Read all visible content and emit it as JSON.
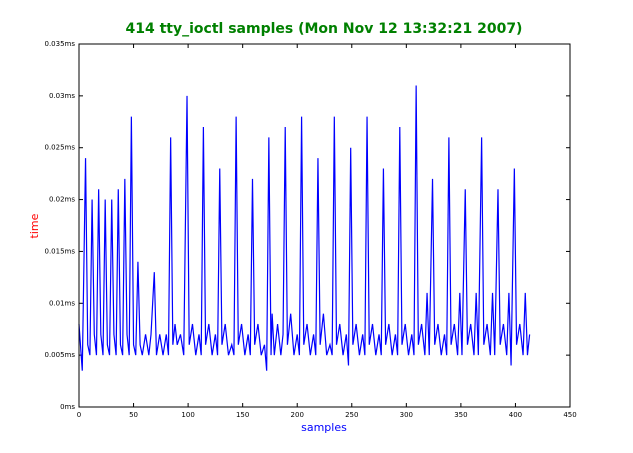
{
  "chart_data": {
    "type": "line",
    "title": "414 tty_ioctl samples (Mon Nov 12 13:32:21 2007)",
    "xlabel": "samples",
    "ylabel": "time",
    "color": "#0000ff",
    "xlim": [
      0,
      450
    ],
    "xticks": [
      0,
      50,
      100,
      150,
      200,
      250,
      300,
      350,
      400,
      450
    ],
    "ylim": [
      0,
      0.035
    ],
    "yticks": [
      {
        "value": 0,
        "label": "0ms"
      },
      {
        "value": 0.005,
        "label": "0.005ms"
      },
      {
        "value": 0.01,
        "label": "0.01ms"
      },
      {
        "value": 0.015,
        "label": "0.015ms"
      },
      {
        "value": 0.02,
        "label": "0.02ms"
      },
      {
        "value": 0.025,
        "label": "0.025ms"
      },
      {
        "value": 0.03,
        "label": "0.03ms"
      },
      {
        "value": 0.035,
        "label": "0.035ms"
      }
    ],
    "x": [
      0,
      3,
      6,
      8,
      10,
      12,
      14,
      16,
      18,
      20,
      22,
      24,
      26,
      28,
      30,
      32,
      34,
      36,
      38,
      40,
      42,
      44,
      46,
      48,
      50,
      52,
      54,
      56,
      58,
      61,
      64,
      66,
      69,
      71,
      74,
      77,
      80,
      82,
      84,
      86,
      88,
      90,
      93,
      96,
      99,
      101,
      104,
      107,
      110,
      112,
      114,
      116,
      119,
      122,
      125,
      127,
      129,
      131,
      134,
      137,
      140,
      142,
      144,
      146,
      149,
      152,
      155,
      157,
      159,
      161,
      164,
      167,
      170,
      172,
      174,
      176,
      177,
      179,
      182,
      185,
      187,
      189,
      191,
      194,
      197,
      200,
      202,
      204,
      206,
      209,
      212,
      215,
      217,
      219,
      221,
      224,
      227,
      230,
      232,
      234,
      236,
      239,
      242,
      245,
      247,
      249,
      251,
      254,
      257,
      260,
      262,
      264,
      266,
      269,
      272,
      275,
      277,
      279,
      281,
      284,
      287,
      290,
      292,
      294,
      296,
      299,
      302,
      305,
      307,
      309,
      311,
      314,
      317,
      319,
      321,
      324,
      326,
      329,
      332,
      335,
      337,
      339,
      341,
      344,
      347,
      349,
      351,
      354,
      356,
      359,
      362,
      364,
      366,
      369,
      371,
      374,
      377,
      379,
      381,
      384,
      386,
      389,
      392,
      394,
      396,
      399,
      401,
      404,
      407,
      409,
      411,
      413
    ],
    "values": [
      0.008,
      0.0035,
      0.024,
      0.006,
      0.005,
      0.02,
      0.007,
      0.005,
      0.021,
      0.007,
      0.005,
      0.02,
      0.006,
      0.005,
      0.02,
      0.007,
      0.005,
      0.021,
      0.006,
      0.005,
      0.022,
      0.007,
      0.005,
      0.028,
      0.006,
      0.005,
      0.014,
      0.006,
      0.005,
      0.007,
      0.005,
      0.007,
      0.013,
      0.005,
      0.007,
      0.005,
      0.007,
      0.005,
      0.026,
      0.006,
      0.008,
      0.006,
      0.007,
      0.005,
      0.03,
      0.006,
      0.008,
      0.005,
      0.007,
      0.005,
      0.027,
      0.006,
      0.008,
      0.005,
      0.007,
      0.005,
      0.023,
      0.006,
      0.008,
      0.005,
      0.006,
      0.005,
      0.028,
      0.006,
      0.008,
      0.005,
      0.007,
      0.005,
      0.022,
      0.006,
      0.008,
      0.005,
      0.006,
      0.0035,
      0.026,
      0.005,
      0.009,
      0.005,
      0.008,
      0.005,
      0.007,
      0.027,
      0.006,
      0.009,
      0.005,
      0.007,
      0.005,
      0.028,
      0.006,
      0.008,
      0.005,
      0.007,
      0.005,
      0.024,
      0.006,
      0.009,
      0.005,
      0.006,
      0.005,
      0.028,
      0.006,
      0.008,
      0.005,
      0.007,
      0.004,
      0.025,
      0.006,
      0.008,
      0.005,
      0.007,
      0.005,
      0.028,
      0.006,
      0.008,
      0.005,
      0.007,
      0.005,
      0.023,
      0.006,
      0.008,
      0.005,
      0.007,
      0.005,
      0.027,
      0.006,
      0.008,
      0.005,
      0.007,
      0.005,
      0.031,
      0.006,
      0.008,
      0.005,
      0.011,
      0.005,
      0.022,
      0.006,
      0.008,
      0.005,
      0.007,
      0.005,
      0.026,
      0.006,
      0.008,
      0.005,
      0.011,
      0.005,
      0.021,
      0.006,
      0.008,
      0.005,
      0.011,
      0.005,
      0.026,
      0.006,
      0.008,
      0.005,
      0.011,
      0.005,
      0.021,
      0.006,
      0.008,
      0.005,
      0.011,
      0.004,
      0.023,
      0.006,
      0.008,
      0.005,
      0.011,
      0.005,
      0.007
    ]
  }
}
